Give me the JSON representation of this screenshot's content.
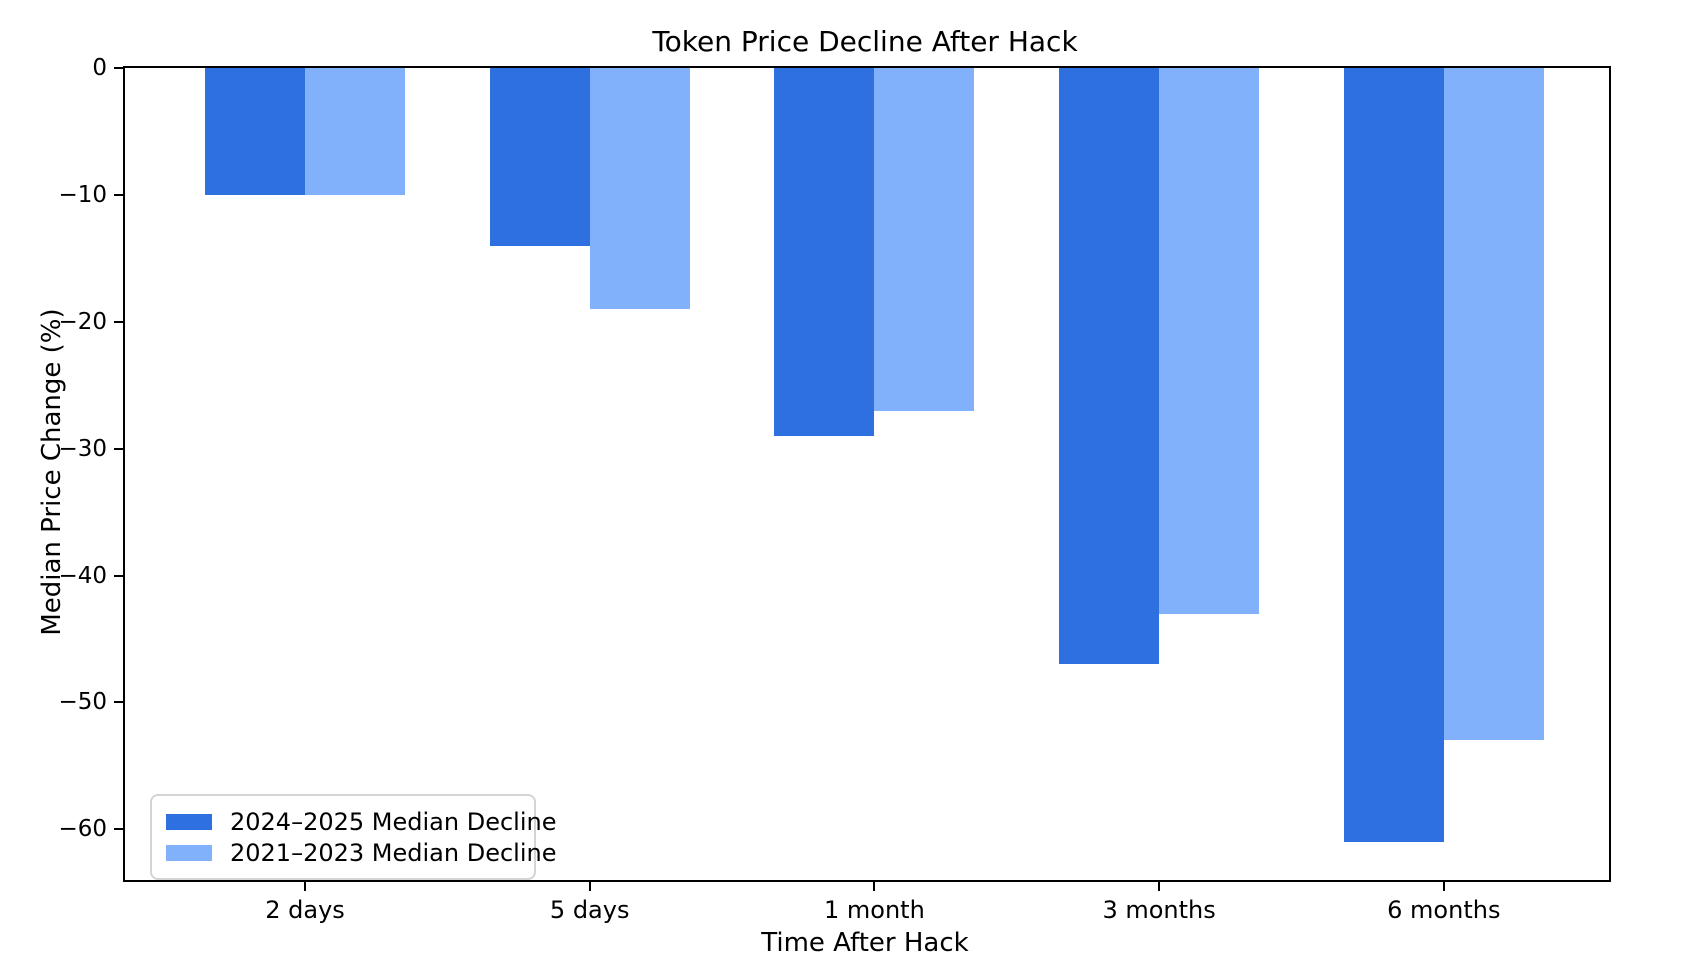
{
  "chart_data": {
    "type": "bar",
    "title": "Token Price Decline After Hack",
    "xlabel": "Time After Hack",
    "ylabel": "Median Price Change (%)",
    "categories": [
      "2 days",
      "5 days",
      "1 month",
      "3 months",
      "6 months"
    ],
    "series": [
      {
        "name": "2024–2025 Median Decline",
        "color": "#2E70E0",
        "values": [
          -10,
          -14,
          -29,
          -47,
          -61
        ]
      },
      {
        "name": "2021–2023 Median Decline",
        "color": "#80B1FA",
        "values": [
          -10,
          -19,
          -27,
          -43,
          -53
        ]
      }
    ],
    "ylim": [
      -64,
      0
    ],
    "yticks": [
      0,
      -10,
      -20,
      -30,
      -40,
      -50,
      -60
    ],
    "ytick_labels": [
      "0",
      "−10",
      "−20",
      "−30",
      "−40",
      "−50",
      "−60"
    ],
    "grid": false,
    "legend_position": "lower left"
  }
}
